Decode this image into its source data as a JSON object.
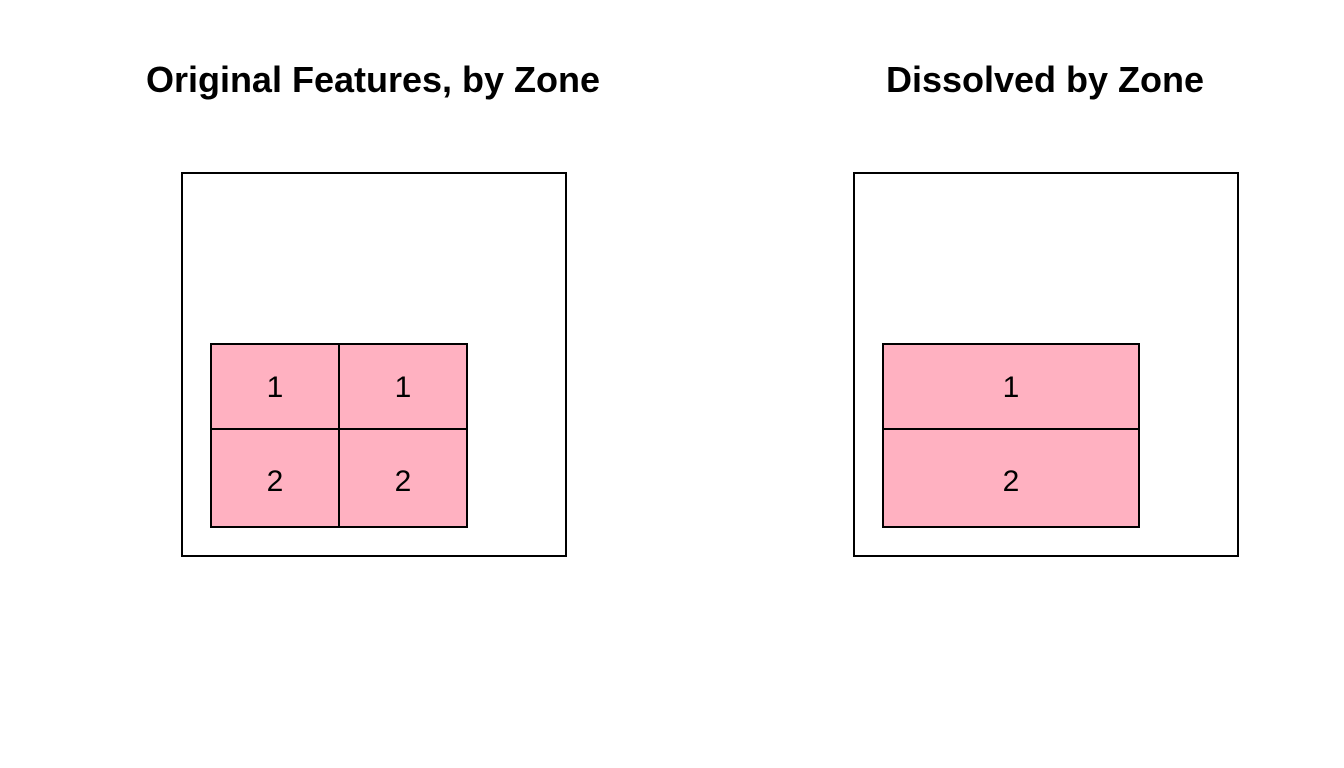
{
  "panels": [
    {
      "title": "Original Features, by Zone",
      "cells": [
        {
          "label": "1",
          "zone": 1
        },
        {
          "label": "1",
          "zone": 1
        },
        {
          "label": "2",
          "zone": 2
        },
        {
          "label": "2",
          "zone": 2
        }
      ]
    },
    {
      "title": "Dissolved by Zone",
      "cells": [
        {
          "label": "1",
          "zone": 1
        },
        {
          "label": "2",
          "zone": 2
        }
      ]
    }
  ],
  "colors": {
    "fill": "#ffb1c1",
    "stroke": "#000000",
    "background": "#ffffff"
  }
}
